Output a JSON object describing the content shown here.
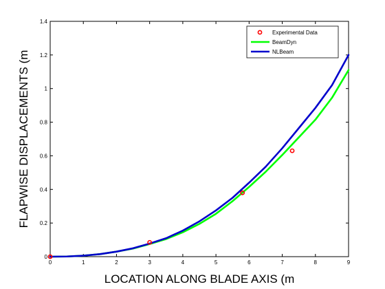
{
  "chart_data": {
    "type": "line",
    "xlabel": "LOCATION ALONG BLADE AXIS (m",
    "ylabel": "FLAPWISE DISPLACEMENTS (m",
    "xlim": [
      0,
      9
    ],
    "ylim": [
      0,
      1.4
    ],
    "xticks": [
      "0",
      "1",
      "2",
      "3",
      "4",
      "5",
      "6",
      "7",
      "8",
      "9"
    ],
    "yticks": [
      "0",
      "0.2",
      "0.4",
      "0.6",
      "0.8",
      "1",
      "1.2",
      "1.4"
    ],
    "legend_position": "top-right",
    "grid": false,
    "series": [
      {
        "name": "Experimental Data",
        "kind": "scatter",
        "color": "#ff0000",
        "x": [
          0,
          3.0,
          5.8,
          7.3
        ],
        "y": [
          0,
          0.085,
          0.38,
          0.63
        ]
      },
      {
        "name": "BeamDyn",
        "kind": "line",
        "color": "#00ff00",
        "x": [
          0,
          0.5,
          1,
          1.5,
          2,
          2.5,
          3,
          3.5,
          4,
          4.5,
          5,
          5.5,
          6,
          6.5,
          7,
          7.5,
          8,
          8.5,
          9
        ],
        "y": [
          0,
          0.001,
          0.006,
          0.015,
          0.03,
          0.048,
          0.075,
          0.105,
          0.145,
          0.195,
          0.255,
          0.33,
          0.415,
          0.505,
          0.605,
          0.71,
          0.815,
          0.945,
          1.11
        ]
      },
      {
        "name": "NLBeam",
        "kind": "line",
        "color": "#0000cc",
        "x": [
          0,
          0.5,
          1,
          1.5,
          2,
          2.5,
          3,
          3.5,
          4,
          4.5,
          5,
          5.5,
          6,
          6.5,
          7,
          7.5,
          8,
          8.5,
          9
        ],
        "y": [
          0,
          0.001,
          0.006,
          0.015,
          0.03,
          0.05,
          0.078,
          0.11,
          0.155,
          0.21,
          0.275,
          0.35,
          0.44,
          0.535,
          0.645,
          0.765,
          0.885,
          1.02,
          1.2
        ]
      }
    ]
  }
}
